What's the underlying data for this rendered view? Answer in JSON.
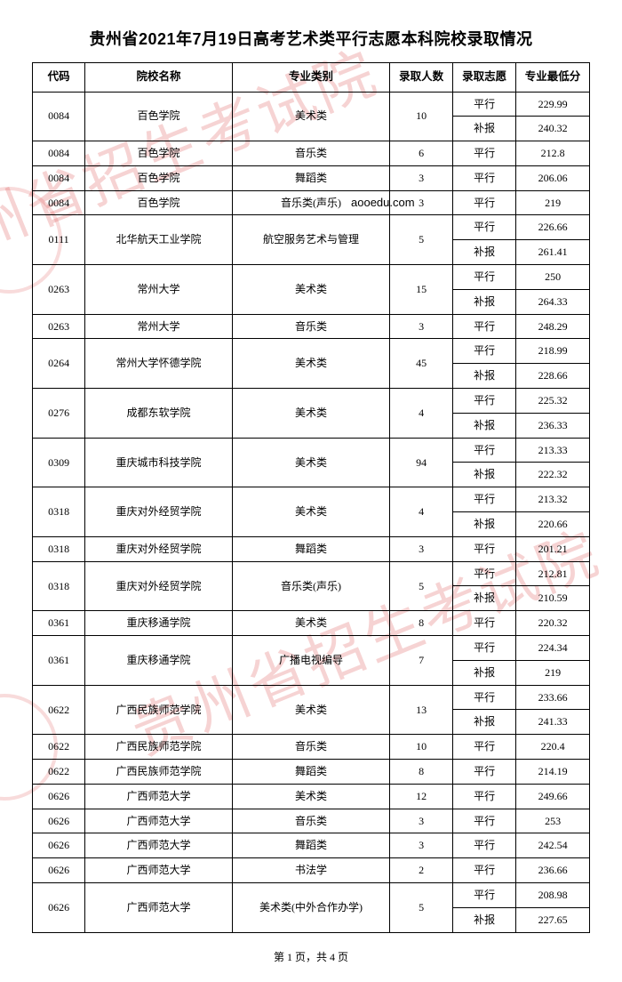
{
  "title": "贵州省2021年7月19日高考艺术类平行志愿本科院校录取情况",
  "watermark_url": "aooedu.com",
  "stamp_text": "贵州省招生考试院",
  "footer": "第 1 页，共 4 页",
  "columns": {
    "code": "代码",
    "school": "院校名称",
    "major": "专业类别",
    "count": "录取人数",
    "wish": "录取志愿",
    "score": "专业最低分"
  },
  "rows": [
    {
      "code": "0084",
      "school": "百色学院",
      "major": "美术类",
      "count": "10",
      "sub": [
        {
          "wish": "平行",
          "score": "229.99"
        },
        {
          "wish": "补报",
          "score": "240.32"
        }
      ]
    },
    {
      "code": "0084",
      "school": "百色学院",
      "major": "音乐类",
      "count": "6",
      "sub": [
        {
          "wish": "平行",
          "score": "212.8"
        }
      ]
    },
    {
      "code": "0084",
      "school": "百色学院",
      "major": "舞蹈类",
      "count": "3",
      "sub": [
        {
          "wish": "平行",
          "score": "206.06"
        }
      ]
    },
    {
      "code": "0084",
      "school": "百色学院",
      "major": "音乐类(声乐)",
      "count": "3",
      "sub": [
        {
          "wish": "平行",
          "score": "219"
        }
      ]
    },
    {
      "code": "0111",
      "school": "北华航天工业学院",
      "major": "航空服务艺术与管理",
      "count": "5",
      "sub": [
        {
          "wish": "平行",
          "score": "226.66"
        },
        {
          "wish": "补报",
          "score": "261.41"
        }
      ]
    },
    {
      "code": "0263",
      "school": "常州大学",
      "major": "美术类",
      "count": "15",
      "sub": [
        {
          "wish": "平行",
          "score": "250"
        },
        {
          "wish": "补报",
          "score": "264.33"
        }
      ]
    },
    {
      "code": "0263",
      "school": "常州大学",
      "major": "音乐类",
      "count": "3",
      "sub": [
        {
          "wish": "平行",
          "score": "248.29"
        }
      ]
    },
    {
      "code": "0264",
      "school": "常州大学怀德学院",
      "major": "美术类",
      "count": "45",
      "sub": [
        {
          "wish": "平行",
          "score": "218.99"
        },
        {
          "wish": "补报",
          "score": "228.66"
        }
      ]
    },
    {
      "code": "0276",
      "school": "成都东软学院",
      "major": "美术类",
      "count": "4",
      "sub": [
        {
          "wish": "平行",
          "score": "225.32"
        },
        {
          "wish": "补报",
          "score": "236.33"
        }
      ]
    },
    {
      "code": "0309",
      "school": "重庆城市科技学院",
      "major": "美术类",
      "count": "94",
      "sub": [
        {
          "wish": "平行",
          "score": "213.33"
        },
        {
          "wish": "补报",
          "score": "222.32"
        }
      ]
    },
    {
      "code": "0318",
      "school": "重庆对外经贸学院",
      "major": "美术类",
      "count": "4",
      "sub": [
        {
          "wish": "平行",
          "score": "213.32"
        },
        {
          "wish": "补报",
          "score": "220.66"
        }
      ]
    },
    {
      "code": "0318",
      "school": "重庆对外经贸学院",
      "major": "舞蹈类",
      "count": "3",
      "sub": [
        {
          "wish": "平行",
          "score": "201.21"
        }
      ]
    },
    {
      "code": "0318",
      "school": "重庆对外经贸学院",
      "major": "音乐类(声乐)",
      "count": "5",
      "sub": [
        {
          "wish": "平行",
          "score": "212.81"
        },
        {
          "wish": "补报",
          "score": "210.59"
        }
      ]
    },
    {
      "code": "0361",
      "school": "重庆移通学院",
      "major": "美术类",
      "count": "8",
      "sub": [
        {
          "wish": "平行",
          "score": "220.32"
        }
      ]
    },
    {
      "code": "0361",
      "school": "重庆移通学院",
      "major": "广播电视编导",
      "count": "7",
      "sub": [
        {
          "wish": "平行",
          "score": "224.34"
        },
        {
          "wish": "补报",
          "score": "219"
        }
      ]
    },
    {
      "code": "0622",
      "school": "广西民族师范学院",
      "major": "美术类",
      "count": "13",
      "sub": [
        {
          "wish": "平行",
          "score": "233.66"
        },
        {
          "wish": "补报",
          "score": "241.33"
        }
      ]
    },
    {
      "code": "0622",
      "school": "广西民族师范学院",
      "major": "音乐类",
      "count": "10",
      "sub": [
        {
          "wish": "平行",
          "score": "220.4"
        }
      ]
    },
    {
      "code": "0622",
      "school": "广西民族师范学院",
      "major": "舞蹈类",
      "count": "8",
      "sub": [
        {
          "wish": "平行",
          "score": "214.19"
        }
      ]
    },
    {
      "code": "0626",
      "school": "广西师范大学",
      "major": "美术类",
      "count": "12",
      "sub": [
        {
          "wish": "平行",
          "score": "249.66"
        }
      ]
    },
    {
      "code": "0626",
      "school": "广西师范大学",
      "major": "音乐类",
      "count": "3",
      "sub": [
        {
          "wish": "平行",
          "score": "253"
        }
      ]
    },
    {
      "code": "0626",
      "school": "广西师范大学",
      "major": "舞蹈类",
      "count": "3",
      "sub": [
        {
          "wish": "平行",
          "score": "242.54"
        }
      ]
    },
    {
      "code": "0626",
      "school": "广西师范大学",
      "major": "书法学",
      "count": "2",
      "sub": [
        {
          "wish": "平行",
          "score": "236.66"
        }
      ]
    },
    {
      "code": "0626",
      "school": "广西师范大学",
      "major": "美术类(中外合作办学)",
      "count": "5",
      "sub": [
        {
          "wish": "平行",
          "score": "208.98"
        },
        {
          "wish": "补报",
          "score": "227.65"
        }
      ]
    }
  ]
}
